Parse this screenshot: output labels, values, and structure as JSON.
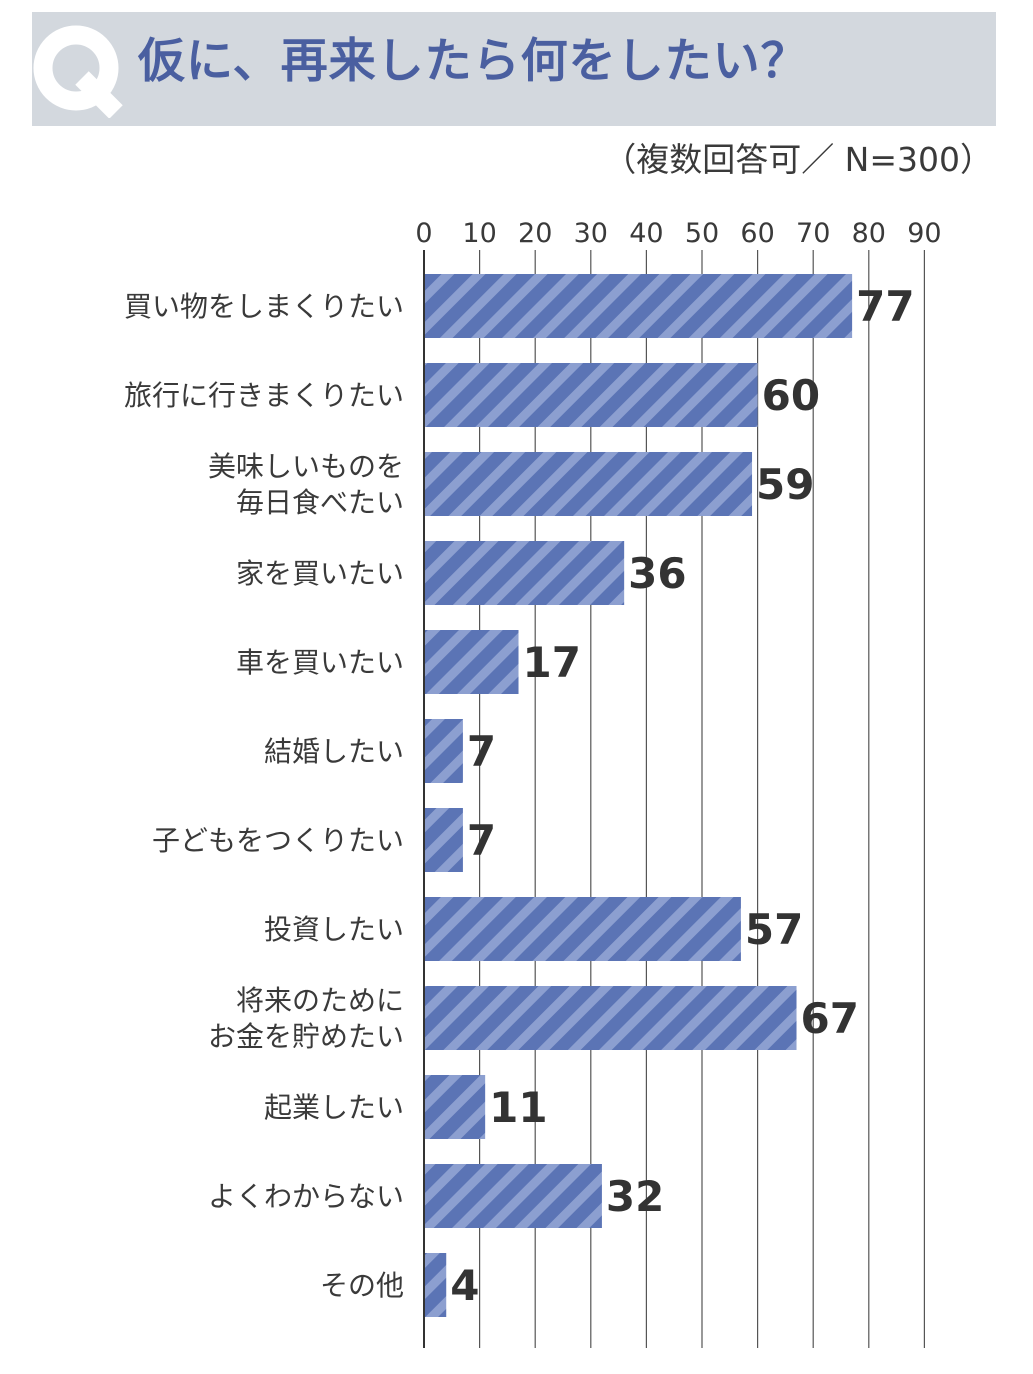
{
  "header": {
    "q_letter": "Q",
    "title": "仮に、再来したら何をしたい？",
    "subtitle": "（複数回答可／ N=300）"
  },
  "colors": {
    "header_bg": "#d3d8de",
    "title": "#4a5fa0",
    "bar": "#5b74b5",
    "bar_stripe": "#8c9fd0",
    "grid": "#555555"
  },
  "chart_data": {
    "type": "bar",
    "orientation": "horizontal",
    "title": "仮に、再来したら何をしたい？",
    "subtitle": "（複数回答可／ N=300）",
    "xlim": [
      0,
      90
    ],
    "x_ticks": [
      0,
      10,
      20,
      30,
      40,
      50,
      60,
      70,
      80,
      90
    ],
    "tick_labels": [
      "0",
      "10",
      "20",
      "30",
      "40",
      "50",
      "60",
      "70",
      "80",
      "90"
    ],
    "grid": true,
    "categories": [
      [
        "買い物をしまくりたい"
      ],
      [
        "旅行に行きまくりたい"
      ],
      [
        "美味しいものを",
        "毎日食べたい"
      ],
      [
        "家を買いたい"
      ],
      [
        "車を買いたい"
      ],
      [
        "結婚したい"
      ],
      [
        "子どもをつくりたい"
      ],
      [
        "投資したい"
      ],
      [
        "将来のために",
        "お金を貯めたい"
      ],
      [
        "起業したい"
      ],
      [
        "よくわからない"
      ],
      [
        "その他"
      ]
    ],
    "values": [
      77,
      60,
      59,
      36,
      17,
      7,
      7,
      57,
      67,
      11,
      32,
      4
    ],
    "value_labels": [
      "77",
      "60",
      "59",
      "36",
      "17",
      "7",
      "7",
      "57",
      "67",
      "11",
      "32",
      "4"
    ]
  }
}
